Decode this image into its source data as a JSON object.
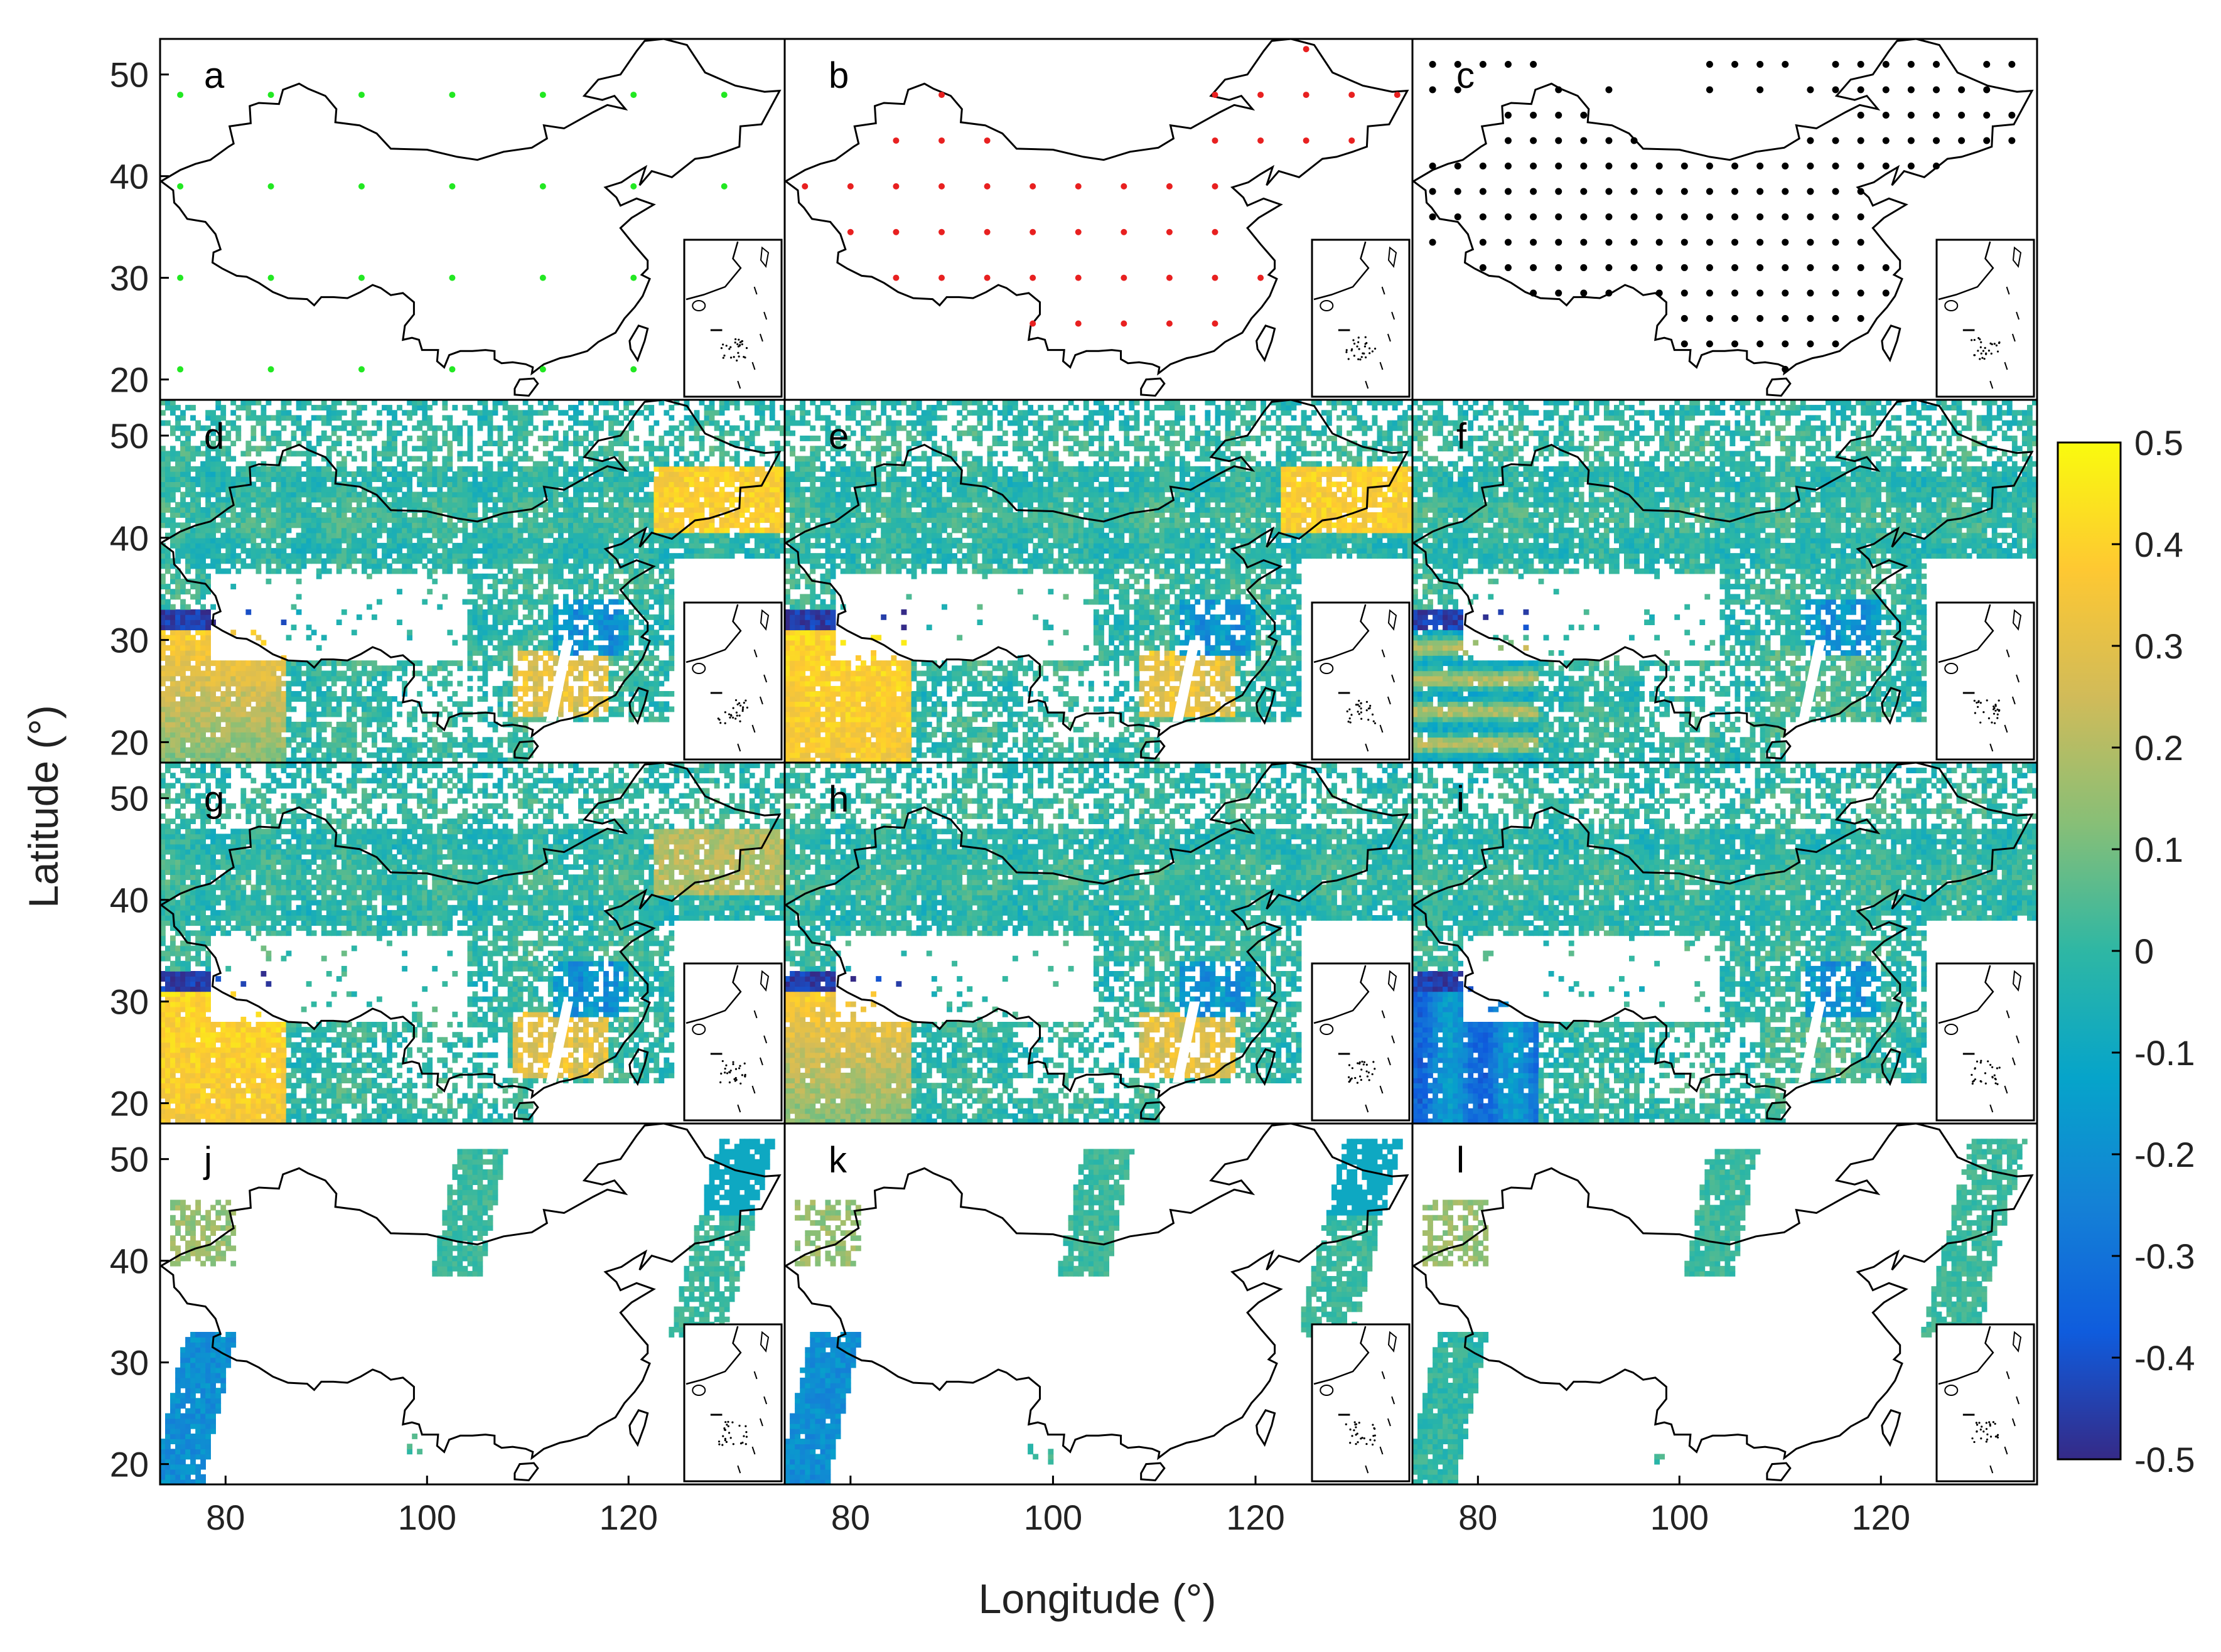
{
  "figure": {
    "xlabel": "Longitude (°)",
    "ylabel": "Latitude (°)",
    "x_ticks": [
      "80",
      "100",
      "120"
    ],
    "x_tick_values": [
      80,
      100,
      120
    ],
    "y_ticks": [
      "20",
      "30",
      "40",
      "50"
    ],
    "y_tick_values": [
      20,
      30,
      40,
      50
    ],
    "lon_range": [
      73.5,
      135.5
    ],
    "lat_range": [
      18,
      53.5
    ]
  },
  "panels": [
    {
      "label": "a",
      "type": "site-map",
      "marker_color": "#22e822",
      "grid_step_deg": 9
    },
    {
      "label": "b",
      "type": "site-map",
      "marker_color": "#e82020",
      "grid_step_deg": 4.5
    },
    {
      "label": "c",
      "type": "site-map",
      "marker_color": "#000000",
      "grid_step_deg": 2.5
    },
    {
      "label": "d",
      "type": "field",
      "coverage": "full"
    },
    {
      "label": "e",
      "type": "field",
      "coverage": "full"
    },
    {
      "label": "f",
      "type": "field",
      "coverage": "full"
    },
    {
      "label": "g",
      "type": "field",
      "coverage": "full"
    },
    {
      "label": "h",
      "type": "field",
      "coverage": "full"
    },
    {
      "label": "i",
      "type": "field",
      "coverage": "full"
    },
    {
      "label": "j",
      "type": "field",
      "coverage": "swath"
    },
    {
      "label": "k",
      "type": "field",
      "coverage": "swath"
    },
    {
      "label": "l",
      "type": "field",
      "coverage": "swath"
    }
  ],
  "colorbar": {
    "ticks": [
      "0.5",
      "0.4",
      "0.3",
      "0.2",
      "0.1",
      "0",
      "-0.1",
      "-0.2",
      "-0.3",
      "-0.4",
      "-0.5"
    ],
    "tick_values": [
      0.5,
      0.4,
      0.3,
      0.2,
      0.1,
      0,
      -0.1,
      -0.2,
      -0.3,
      -0.4,
      -0.5
    ],
    "range": [
      -0.5,
      0.5
    ],
    "colors": [
      "#352a87",
      "#0f5cdd",
      "#1481d6",
      "#06a4ca",
      "#2eb7a4",
      "#87bf77",
      "#d1bb59",
      "#fec832",
      "#f9fb0e"
    ]
  }
}
